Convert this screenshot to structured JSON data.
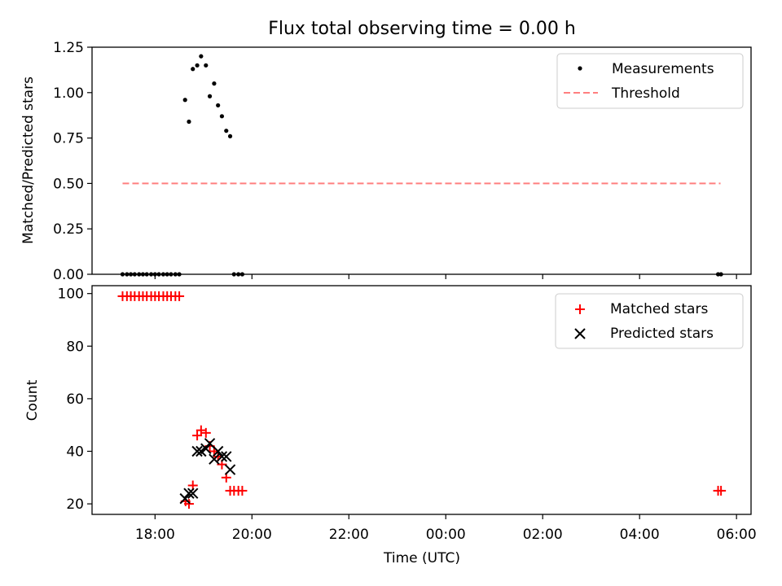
{
  "chart_data": [
    {
      "type": "scatter",
      "panel": "top",
      "title": "Flux total observing time = 0.00 h",
      "ylabel": "Matched/Predicted stars",
      "xlabel": "",
      "xlim": [
        16.7,
        30.3
      ],
      "ylim": [
        0,
        1.25
      ],
      "yticks": [
        "0.00",
        "0.25",
        "0.50",
        "0.75",
        "1.00",
        "1.25"
      ],
      "ytick_values": [
        0,
        0.25,
        0.5,
        0.75,
        1.0,
        1.25
      ],
      "legend": [
        "Measurements",
        "Threshold"
      ],
      "legend_position": "top-right",
      "threshold": {
        "name": "Threshold",
        "y": 0.5,
        "x": [
          17.33,
          29.67
        ],
        "color": "#ff7f7f"
      },
      "series": [
        {
          "name": "Measurements",
          "color": "#000000",
          "marker": "dot",
          "points": [
            [
              17.33,
              0
            ],
            [
              17.42,
              0
            ],
            [
              17.5,
              0
            ],
            [
              17.58,
              0
            ],
            [
              17.67,
              0
            ],
            [
              17.75,
              0
            ],
            [
              17.83,
              0
            ],
            [
              17.92,
              0
            ],
            [
              18.0,
              0
            ],
            [
              18.08,
              0
            ],
            [
              18.17,
              0
            ],
            [
              18.25,
              0
            ],
            [
              18.33,
              0
            ],
            [
              18.42,
              0
            ],
            [
              18.5,
              0
            ],
            [
              18.62,
              0.96
            ],
            [
              18.7,
              0.84
            ],
            [
              18.78,
              1.13
            ],
            [
              18.87,
              1.15
            ],
            [
              18.95,
              1.2
            ],
            [
              19.05,
              1.15
            ],
            [
              19.13,
              0.98
            ],
            [
              19.22,
              1.05
            ],
            [
              19.3,
              0.93
            ],
            [
              19.38,
              0.87
            ],
            [
              19.47,
              0.79
            ],
            [
              19.55,
              0.76
            ],
            [
              19.63,
              0
            ],
            [
              19.72,
              0
            ],
            [
              19.8,
              0
            ],
            [
              29.62,
              0
            ],
            [
              29.68,
              0
            ]
          ]
        }
      ]
    },
    {
      "type": "scatter",
      "panel": "bottom",
      "xlabel": "Time (UTC)",
      "ylabel": "Count",
      "xlim": [
        16.7,
        30.3
      ],
      "ylim": [
        16,
        103
      ],
      "xticks": [
        "18:00",
        "20:00",
        "22:00",
        "00:00",
        "02:00",
        "04:00",
        "06:00"
      ],
      "xtick_values": [
        18,
        20,
        22,
        24,
        26,
        28,
        30
      ],
      "yticks": [
        "20",
        "40",
        "60",
        "80",
        "100"
      ],
      "ytick_values": [
        20,
        40,
        60,
        80,
        100
      ],
      "legend": [
        "Matched stars",
        "Predicted stars"
      ],
      "legend_position": "top-right",
      "series": [
        {
          "name": "Matched stars",
          "color": "#ff0000",
          "marker": "plus",
          "points": [
            [
              17.33,
              99
            ],
            [
              17.42,
              99
            ],
            [
              17.5,
              99
            ],
            [
              17.58,
              99
            ],
            [
              17.67,
              99
            ],
            [
              17.75,
              99
            ],
            [
              17.83,
              99
            ],
            [
              17.92,
              99
            ],
            [
              18.0,
              99
            ],
            [
              18.08,
              99
            ],
            [
              18.17,
              99
            ],
            [
              18.25,
              99
            ],
            [
              18.33,
              99
            ],
            [
              18.42,
              99
            ],
            [
              18.5,
              99
            ],
            [
              18.63,
              21
            ],
            [
              18.7,
              20
            ],
            [
              18.78,
              27
            ],
            [
              18.87,
              46
            ],
            [
              18.95,
              48
            ],
            [
              19.05,
              47
            ],
            [
              19.13,
              42
            ],
            [
              19.22,
              40
            ],
            [
              19.3,
              38
            ],
            [
              19.38,
              35
            ],
            [
              19.47,
              30
            ],
            [
              19.55,
              25
            ],
            [
              19.63,
              25
            ],
            [
              19.72,
              25
            ],
            [
              19.8,
              25
            ],
            [
              29.62,
              25
            ],
            [
              29.68,
              25
            ]
          ]
        },
        {
          "name": "Predicted stars",
          "color": "#000000",
          "marker": "x",
          "points": [
            [
              18.62,
              22
            ],
            [
              18.7,
              24
            ],
            [
              18.78,
              24
            ],
            [
              18.87,
              40
            ],
            [
              18.95,
              40
            ],
            [
              19.05,
              41
            ],
            [
              19.13,
              43
            ],
            [
              19.22,
              37
            ],
            [
              19.3,
              40
            ],
            [
              19.38,
              38
            ],
            [
              19.47,
              38
            ],
            [
              19.55,
              33
            ]
          ]
        }
      ]
    }
  ]
}
